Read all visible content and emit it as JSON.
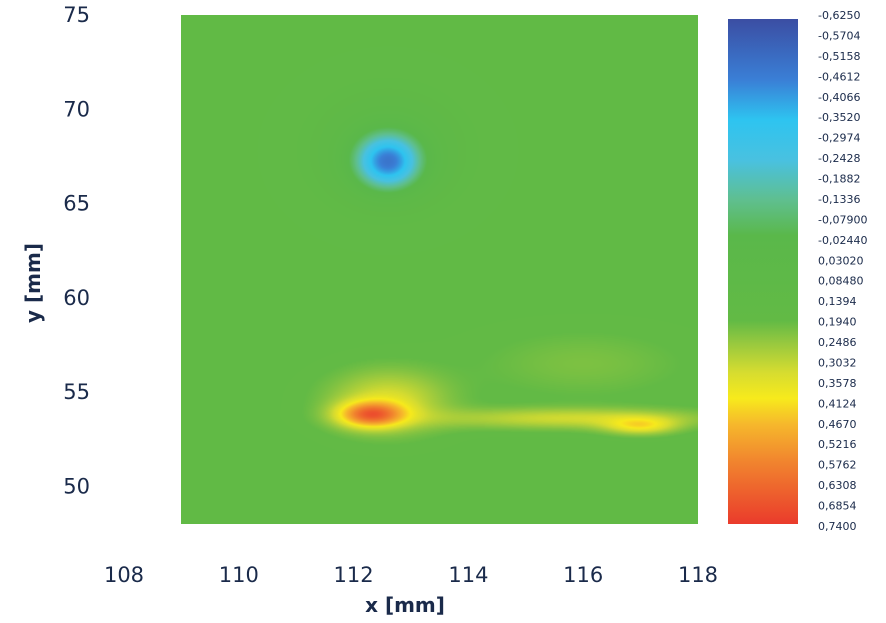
{
  "chart_data": {
    "type": "heatmap",
    "xlabel": "x [mm]",
    "ylabel": "y [mm]",
    "xlim": [
      108,
      118
    ],
    "ylim": [
      48,
      75
    ],
    "plot_xlim": [
      109,
      118
    ],
    "xticks": [
      "108",
      "110",
      "112",
      "114",
      "116",
      "118"
    ],
    "yticks": [
      "50",
      "55",
      "60",
      "65",
      "70",
      "75"
    ],
    "background_value": 0.17,
    "features": [
      {
        "kind": "low",
        "x": 112.6,
        "y": 67.2,
        "sx": 0.55,
        "sy": 1.4,
        "amp": -0.52
      },
      {
        "kind": "low",
        "x": 112.6,
        "y": 67.8,
        "sx": 1.15,
        "sy": 2.8,
        "amp": -0.15
      },
      {
        "kind": "high",
        "x": 112.3,
        "y": 53.8,
        "sx": 0.55,
        "sy": 0.65,
        "amp": 0.38
      },
      {
        "kind": "high",
        "x": 112.6,
        "y": 54.5,
        "sx": 1.0,
        "sy": 1.6,
        "amp": 0.17
      },
      {
        "kind": "high",
        "x": 117.0,
        "y": 53.2,
        "sx": 0.6,
        "sy": 0.45,
        "amp": 0.19
      },
      {
        "kind": "high",
        "x": 115.8,
        "y": 53.6,
        "sx": 2.4,
        "sy": 0.55,
        "amp": 0.15
      },
      {
        "kind": "high",
        "x": 116.0,
        "y": 56.5,
        "sx": 1.8,
        "sy": 1.8,
        "amp": 0.05
      }
    ],
    "colorbar": {
      "labels": [
        "-0,6250",
        "-0,5704",
        "-0,5158",
        "-0,4612",
        "-0,4066",
        "-0,3520",
        "-0,2974",
        "-0,2428",
        "-0,1882",
        "-0,1336",
        "-0,07900",
        "-0,02440",
        "0,03020",
        "0,08480",
        "0,1394",
        "0,1940",
        "0,2486",
        "0,3032",
        "0,3578",
        "0,4124",
        "0,4670",
        "0,5216",
        "0,5762",
        "0,6308",
        "0,6854",
        "0,7400"
      ],
      "min": -0.625,
      "max": 0.74,
      "colors": [
        {
          "v": -0.625,
          "c": "#3b4ea3"
        },
        {
          "v": -0.46,
          "c": "#3a7fd6"
        },
        {
          "v": -0.352,
          "c": "#2ec4f0"
        },
        {
          "v": -0.243,
          "c": "#49c1e0"
        },
        {
          "v": -0.134,
          "c": "#5fbf8e"
        },
        {
          "v": -0.04,
          "c": "#5ab84a"
        },
        {
          "v": 0.19,
          "c": "#62ba45"
        },
        {
          "v": 0.25,
          "c": "#96c83f"
        },
        {
          "v": 0.33,
          "c": "#d6dc30"
        },
        {
          "v": 0.4,
          "c": "#f7ea1c"
        },
        {
          "v": 0.47,
          "c": "#f6b82c"
        },
        {
          "v": 0.57,
          "c": "#f1852e"
        },
        {
          "v": 0.74,
          "c": "#ea3b2c"
        }
      ]
    }
  }
}
